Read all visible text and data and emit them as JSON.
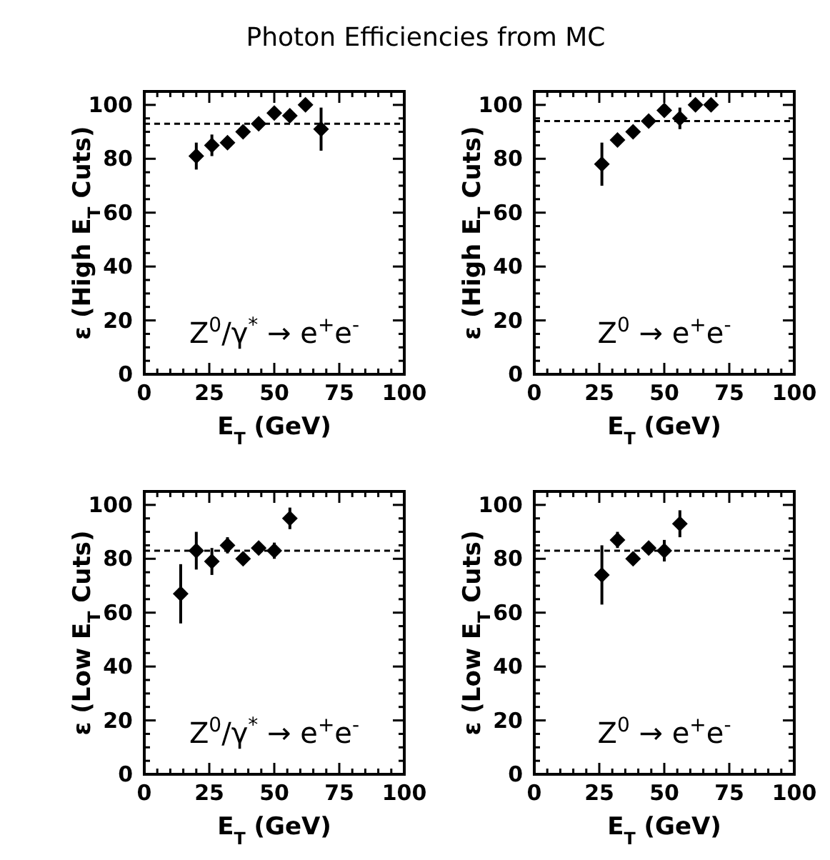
{
  "chart_data": [
    {
      "type": "scatter",
      "title": "Photon Efficiencies from MC",
      "xlabel": "E$_{T}$ (GeV)",
      "ylabel": "ε (High E$_{T}$ Cuts)",
      "annotations": [
        "Z$^{0}$/γ$^{*}$ → e$^{+}$e$^{-}$"
      ],
      "marker": "diamond",
      "grid": false,
      "xlim": [
        0,
        100
      ],
      "ylim": [
        0,
        105
      ],
      "xticks": [
        0,
        {
          "value": 5,
          "label": null
        },
        {
          "value": 10,
          "label": null
        },
        {
          "value": 15,
          "label": null
        },
        {
          "value": 20,
          "label": null
        },
        25,
        {
          "value": 30,
          "label": null
        },
        {
          "value": 35,
          "label": null
        },
        {
          "value": 40,
          "label": null
        },
        {
          "value": 45,
          "label": null
        },
        50,
        {
          "value": 55,
          "label": null
        },
        {
          "value": 60,
          "label": null
        },
        {
          "value": 65,
          "label": null
        },
        {
          "value": 70,
          "label": null
        },
        75,
        {
          "value": 80,
          "label": null
        },
        {
          "value": 85,
          "label": null
        },
        {
          "value": 90,
          "label": null
        },
        {
          "value": 95,
          "label": null
        },
        100
      ],
      "yticks": [
        0,
        {
          "value": 5,
          "label": null
        },
        {
          "value": 10,
          "label": null
        },
        {
          "value": 15,
          "label": null
        },
        20,
        {
          "value": 25,
          "label": null
        },
        {
          "value": 30,
          "label": null
        },
        {
          "value": 35,
          "label": null
        },
        40,
        {
          "value": 45,
          "label": null
        },
        {
          "value": 50,
          "label": null
        },
        {
          "value": 55,
          "label": null
        },
        60,
        {
          "value": 65,
          "label": null
        },
        {
          "value": 70,
          "label": null
        },
        {
          "value": 75,
          "label": null
        },
        80,
        {
          "value": 85,
          "label": null
        },
        {
          "value": 90,
          "label": null
        },
        {
          "value": 95,
          "label": null
        },
        100
      ],
      "series": [
        {
          "color": "#000000",
          "x": [
            20,
            26,
            32,
            38,
            44,
            50,
            56,
            62,
            68
          ],
          "values": [
            81,
            85,
            86,
            90,
            93,
            97,
            96,
            100,
            91
          ],
          "errors": [
            5,
            4,
            null,
            null,
            null,
            null,
            null,
            null,
            8
          ]
        }
      ],
      "ref_lines": [
        {
          "axis": "y",
          "value": 93,
          "line_style": "dashed",
          "color": "#000000"
        }
      ]
    },
    {
      "type": "scatter",
      "xlabel": "E$_{T}$ (GeV)",
      "ylabel": "ε (High E$_{T}$ Cuts)",
      "annotations": [
        "Z$^{0}$ → e$^{+}$e$^{-}$"
      ],
      "marker": "diamond",
      "grid": false,
      "xlim": [
        0,
        100
      ],
      "ylim": [
        0,
        105
      ],
      "xticks": [
        0,
        {
          "value": 5,
          "label": null
        },
        {
          "value": 10,
          "label": null
        },
        {
          "value": 15,
          "label": null
        },
        {
          "value": 20,
          "label": null
        },
        25,
        {
          "value": 30,
          "label": null
        },
        {
          "value": 35,
          "label": null
        },
        {
          "value": 40,
          "label": null
        },
        {
          "value": 45,
          "label": null
        },
        50,
        {
          "value": 55,
          "label": null
        },
        {
          "value": 60,
          "label": null
        },
        {
          "value": 65,
          "label": null
        },
        {
          "value": 70,
          "label": null
        },
        75,
        {
          "value": 80,
          "label": null
        },
        {
          "value": 85,
          "label": null
        },
        {
          "value": 90,
          "label": null
        },
        {
          "value": 95,
          "label": null
        },
        100
      ],
      "yticks": [
        0,
        {
          "value": 5,
          "label": null
        },
        {
          "value": 10,
          "label": null
        },
        {
          "value": 15,
          "label": null
        },
        20,
        {
          "value": 25,
          "label": null
        },
        {
          "value": 30,
          "label": null
        },
        {
          "value": 35,
          "label": null
        },
        40,
        {
          "value": 45,
          "label": null
        },
        {
          "value": 50,
          "label": null
        },
        {
          "value": 55,
          "label": null
        },
        60,
        {
          "value": 65,
          "label": null
        },
        {
          "value": 70,
          "label": null
        },
        {
          "value": 75,
          "label": null
        },
        80,
        {
          "value": 85,
          "label": null
        },
        {
          "value": 90,
          "label": null
        },
        {
          "value": 95,
          "label": null
        },
        100
      ],
      "series": [
        {
          "color": "#000000",
          "x": [
            26,
            32,
            38,
            44,
            50,
            56,
            62,
            68
          ],
          "values": [
            78,
            87,
            90,
            94,
            98,
            95,
            100,
            100
          ],
          "errors": [
            8,
            null,
            null,
            null,
            null,
            4,
            null,
            null
          ]
        }
      ],
      "ref_lines": [
        {
          "axis": "y",
          "value": 94,
          "line_style": "dashed",
          "color": "#000000"
        }
      ]
    },
    {
      "type": "scatter",
      "xlabel": "E$_{T}$ (GeV)",
      "ylabel": "ε (Low E$_{T}$ Cuts)",
      "annotations": [
        "Z$^{0}$/γ$^{*}$ → e$^{+}$e$^{-}$"
      ],
      "marker": "diamond",
      "grid": false,
      "xlim": [
        0,
        100
      ],
      "ylim": [
        0,
        105
      ],
      "xticks": [
        0,
        {
          "value": 5,
          "label": null
        },
        {
          "value": 10,
          "label": null
        },
        {
          "value": 15,
          "label": null
        },
        {
          "value": 20,
          "label": null
        },
        25,
        {
          "value": 30,
          "label": null
        },
        {
          "value": 35,
          "label": null
        },
        {
          "value": 40,
          "label": null
        },
        {
          "value": 45,
          "label": null
        },
        50,
        {
          "value": 55,
          "label": null
        },
        {
          "value": 60,
          "label": null
        },
        {
          "value": 65,
          "label": null
        },
        {
          "value": 70,
          "label": null
        },
        75,
        {
          "value": 80,
          "label": null
        },
        {
          "value": 85,
          "label": null
        },
        {
          "value": 90,
          "label": null
        },
        {
          "value": 95,
          "label": null
        },
        100
      ],
      "yticks": [
        0,
        {
          "value": 5,
          "label": null
        },
        {
          "value": 10,
          "label": null
        },
        {
          "value": 15,
          "label": null
        },
        20,
        {
          "value": 25,
          "label": null
        },
        {
          "value": 30,
          "label": null
        },
        {
          "value": 35,
          "label": null
        },
        40,
        {
          "value": 45,
          "label": null
        },
        {
          "value": 50,
          "label": null
        },
        {
          "value": 55,
          "label": null
        },
        60,
        {
          "value": 65,
          "label": null
        },
        {
          "value": 70,
          "label": null
        },
        {
          "value": 75,
          "label": null
        },
        80,
        {
          "value": 85,
          "label": null
        },
        {
          "value": 90,
          "label": null
        },
        {
          "value": 95,
          "label": null
        },
        100
      ],
      "series": [
        {
          "color": "#000000",
          "x": [
            14,
            20,
            26,
            32,
            38,
            44,
            50,
            56
          ],
          "values": [
            67,
            83,
            79,
            85,
            80,
            84,
            83,
            95
          ],
          "errors": [
            11,
            7,
            5,
            3,
            null,
            null,
            3,
            4
          ]
        }
      ],
      "ref_lines": [
        {
          "axis": "y",
          "value": 83,
          "line_style": "dashed",
          "color": "#000000"
        }
      ]
    },
    {
      "type": "scatter",
      "xlabel": "E$_{T}$ (GeV)",
      "ylabel": "ε (Low E$_{T}$ Cuts)",
      "annotations": [
        "Z$^{0}$ → e$^{+}$e$^{-}$"
      ],
      "marker": "diamond",
      "grid": false,
      "xlim": [
        0,
        100
      ],
      "ylim": [
        0,
        105
      ],
      "xticks": [
        0,
        {
          "value": 5,
          "label": null
        },
        {
          "value": 10,
          "label": null
        },
        {
          "value": 15,
          "label": null
        },
        {
          "value": 20,
          "label": null
        },
        25,
        {
          "value": 30,
          "label": null
        },
        {
          "value": 35,
          "label": null
        },
        {
          "value": 40,
          "label": null
        },
        {
          "value": 45,
          "label": null
        },
        50,
        {
          "value": 55,
          "label": null
        },
        {
          "value": 60,
          "label": null
        },
        {
          "value": 65,
          "label": null
        },
        {
          "value": 70,
          "label": null
        },
        75,
        {
          "value": 80,
          "label": null
        },
        {
          "value": 85,
          "label": null
        },
        {
          "value": 90,
          "label": null
        },
        {
          "value": 95,
          "label": null
        },
        100
      ],
      "yticks": [
        0,
        {
          "value": 5,
          "label": null
        },
        {
          "value": 10,
          "label": null
        },
        {
          "value": 15,
          "label": null
        },
        20,
        {
          "value": 25,
          "label": null
        },
        {
          "value": 30,
          "label": null
        },
        {
          "value": 35,
          "label": null
        },
        40,
        {
          "value": 45,
          "label": null
        },
        {
          "value": 50,
          "label": null
        },
        {
          "value": 55,
          "label": null
        },
        60,
        {
          "value": 65,
          "label": null
        },
        {
          "value": 70,
          "label": null
        },
        {
          "value": 75,
          "label": null
        },
        80,
        {
          "value": 85,
          "label": null
        },
        {
          "value": 90,
          "label": null
        },
        {
          "value": 95,
          "label": null
        },
        100
      ],
      "series": [
        {
          "color": "#000000",
          "x": [
            26,
            32,
            38,
            44,
            50,
            56
          ],
          "values": [
            74,
            87,
            80,
            84,
            83,
            93
          ],
          "errors": [
            11,
            3,
            null,
            null,
            4,
            5
          ]
        }
      ],
      "ref_lines": [
        {
          "axis": "y",
          "value": 83,
          "line_style": "dashed",
          "color": "#000000"
        }
      ]
    }
  ]
}
